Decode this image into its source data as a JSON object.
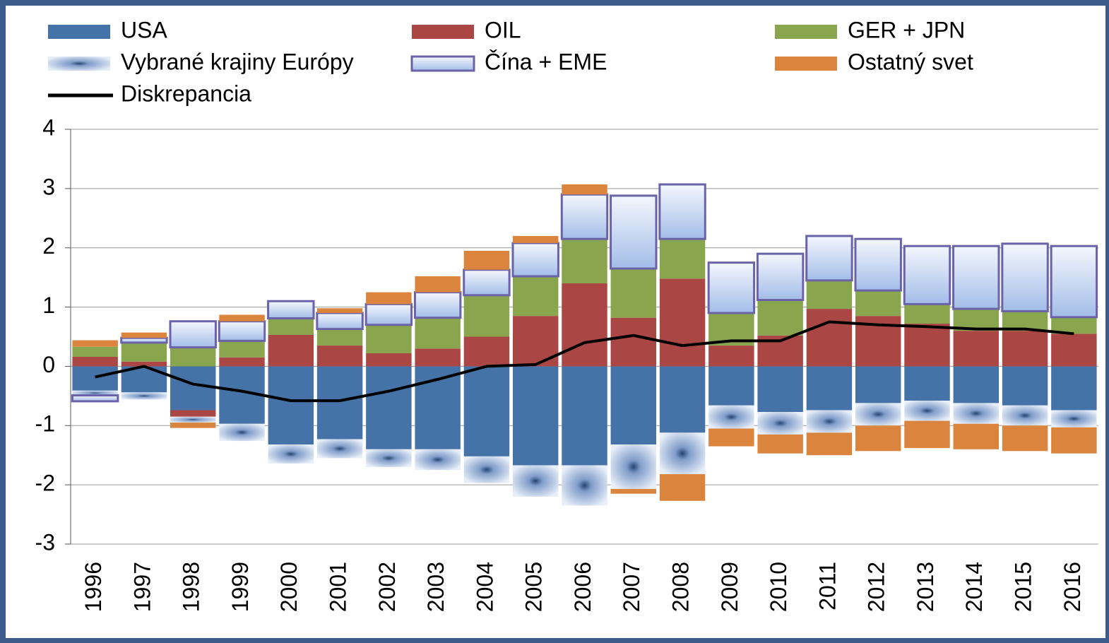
{
  "chart_data": {
    "type": "bar",
    "categories": [
      "1996",
      "1997",
      "1998",
      "1999",
      "2000",
      "2001",
      "2002",
      "2003",
      "2004",
      "2005",
      "2006",
      "2007",
      "2008",
      "2009",
      "2010",
      "2011",
      "2012",
      "2013",
      "2014",
      "2015",
      "2016"
    ],
    "ylim": [
      -3,
      4
    ],
    "yticks": [
      -3,
      -2,
      -1,
      0,
      1,
      2,
      3,
      4
    ],
    "grid": true,
    "stacked": true,
    "series": [
      {
        "name": "USA",
        "color": "#4572a7",
        "values": [
          -0.41,
          -0.44,
          -0.74,
          -0.97,
          -1.32,
          -1.23,
          -1.4,
          -1.4,
          -1.52,
          -1.67,
          -1.67,
          -1.32,
          -1.12,
          -0.66,
          -0.77,
          -0.74,
          -0.62,
          -0.58,
          -0.62,
          -0.66,
          -0.74
        ]
      },
      {
        "name": "OIL",
        "color": "#aa4643",
        "values": [
          0.16,
          0.08,
          -0.11,
          0.15,
          0.53,
          0.35,
          0.22,
          0.3,
          0.5,
          0.85,
          1.4,
          0.82,
          1.48,
          0.35,
          0.52,
          0.97,
          0.85,
          0.72,
          0.6,
          0.6,
          0.55
        ]
      },
      {
        "name": "GER + JPN",
        "color": "#89a54e",
        "values": [
          0.17,
          0.32,
          0.32,
          0.28,
          0.28,
          0.28,
          0.48,
          0.52,
          0.7,
          0.67,
          0.75,
          0.83,
          0.67,
          0.55,
          0.6,
          0.48,
          0.43,
          0.33,
          0.37,
          0.33,
          0.28
        ]
      },
      {
        "name": "Vybrané krajiny Európy",
        "color": "#dbe6f7",
        "values": [
          -0.08,
          -0.12,
          -0.1,
          -0.29,
          -0.32,
          -0.32,
          -0.3,
          -0.35,
          -0.45,
          -0.53,
          -0.68,
          -0.75,
          -0.7,
          -0.39,
          -0.38,
          -0.38,
          -0.38,
          -0.34,
          -0.35,
          -0.34,
          -0.29
        ]
      },
      {
        "name": "Čína + EME",
        "color": "#b9cdee",
        "values": [
          -0.1,
          0.08,
          0.44,
          0.33,
          0.29,
          0.27,
          0.35,
          0.43,
          0.43,
          0.56,
          0.75,
          1.23,
          0.92,
          0.85,
          0.78,
          0.75,
          0.87,
          0.98,
          1.06,
          1.14,
          1.2
        ]
      },
      {
        "name": "Ostatný svet",
        "color": "#db843d",
        "values": [
          0.11,
          0.09,
          -0.09,
          0.11,
          0,
          0.08,
          0.2,
          0.27,
          0.32,
          0.12,
          0.17,
          -0.08,
          -0.45,
          -0.3,
          -0.32,
          -0.38,
          -0.43,
          -0.46,
          -0.43,
          -0.43,
          -0.44
        ]
      },
      {
        "name": "Diskrepancia",
        "type": "line",
        "color": "#000000",
        "values": [
          -0.18,
          0.0,
          -0.3,
          -0.42,
          -0.58,
          -0.58,
          -0.42,
          -0.22,
          0.0,
          0.03,
          0.4,
          0.52,
          0.35,
          0.43,
          0.43,
          0.75,
          0.7,
          0.67,
          0.63,
          0.63,
          0.55
        ]
      }
    ]
  }
}
